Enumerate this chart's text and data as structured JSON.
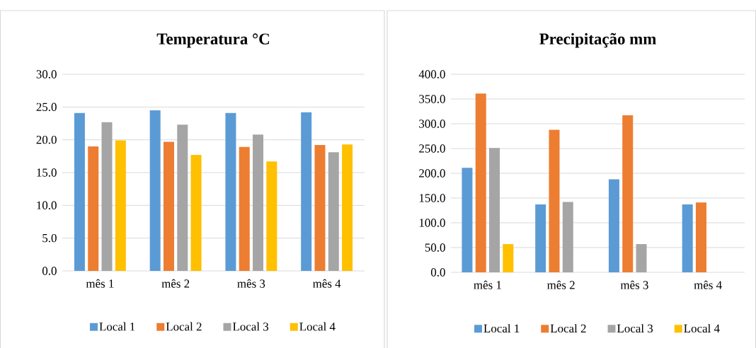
{
  "chart_data": [
    {
      "type": "bar",
      "title": "Temperatura °C",
      "categories": [
        "mês 1",
        "mês 2",
        "mês 3",
        "mês 4"
      ],
      "series": [
        {
          "name": "Local 1",
          "color": "#5b9bd5",
          "values": [
            24.1,
            24.5,
            24.1,
            24.2
          ]
        },
        {
          "name": "Local 2",
          "color": "#ed7d31",
          "values": [
            19.0,
            19.7,
            18.9,
            19.2
          ]
        },
        {
          "name": "Local 3",
          "color": "#a5a5a5",
          "values": [
            22.7,
            22.3,
            20.8,
            18.1
          ]
        },
        {
          "name": "Local 4",
          "color": "#ffc000",
          "values": [
            19.9,
            17.7,
            16.7,
            19.3
          ]
        }
      ],
      "ylim": [
        0,
        30
      ],
      "yticks": [
        {
          "value": 0,
          "label": "0.0"
        },
        {
          "value": 5,
          "label": "5.0"
        },
        {
          "value": 10,
          "label": "10.0"
        },
        {
          "value": 15,
          "label": "15.0"
        },
        {
          "value": 20,
          "label": "20.0"
        },
        {
          "value": 25,
          "label": "25.0"
        },
        {
          "value": 30,
          "label": "30.0"
        }
      ],
      "grid": "y",
      "legend": "bottom"
    },
    {
      "type": "bar",
      "title": "Precipitação mm",
      "categories": [
        "mês 1",
        "mês 2",
        "mês 3",
        "mês 4"
      ],
      "series": [
        {
          "name": "Local 1",
          "color": "#5b9bd5",
          "values": [
            211,
            137,
            188,
            137
          ]
        },
        {
          "name": "Local 2",
          "color": "#ed7d31",
          "values": [
            361,
            288,
            317,
            141
          ]
        },
        {
          "name": "Local 3",
          "color": "#a5a5a5",
          "values": [
            251,
            142,
            57,
            0
          ]
        },
        {
          "name": "Local 4",
          "color": "#ffc000",
          "values": [
            57,
            0,
            0,
            0
          ]
        }
      ],
      "ylim": [
        0,
        400
      ],
      "yticks": [
        {
          "value": 0,
          "label": "0.0"
        },
        {
          "value": 50,
          "label": "50.0"
        },
        {
          "value": 100,
          "label": "100.0"
        },
        {
          "value": 150,
          "label": "150.0"
        },
        {
          "value": 200,
          "label": "200.0"
        },
        {
          "value": 250,
          "label": "250.0"
        },
        {
          "value": 300,
          "label": "300.0"
        },
        {
          "value": 350,
          "label": "350.0"
        },
        {
          "value": 400,
          "label": "400.0"
        }
      ],
      "grid": "y",
      "legend": "bottom"
    }
  ]
}
